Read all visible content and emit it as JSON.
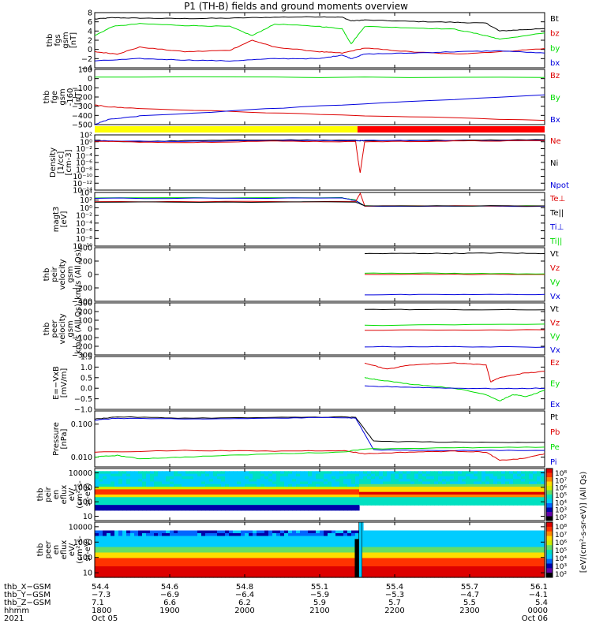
{
  "title": "P1 (TH-B) fields and ground moments overview",
  "colors": {
    "black": "#000000",
    "red": "#dd0000",
    "green": "#00dd00",
    "blue": "#0000dd",
    "yellow": "#ffff00",
    "barred": "#ff0000"
  },
  "chart_data": [
    {
      "type": "line",
      "ylabel": [
        "thb",
        "fgs",
        "gsm",
        "[nT]"
      ],
      "yticks": [
        "8",
        "6",
        "4",
        "2",
        "0",
        "−2",
        "−4"
      ],
      "ylim": [
        -4,
        8
      ],
      "legend": [
        {
          "label": "Bt",
          "color": "black"
        },
        {
          "label": "bz",
          "color": "red"
        },
        {
          "label": "by",
          "color": "green"
        },
        {
          "label": "bx",
          "color": "blue"
        }
      ],
      "series": [
        {
          "name": "Bt",
          "color": "black",
          "x": [
            0,
            0.04,
            0.1,
            0.2,
            0.3,
            0.4,
            0.5,
            0.55,
            0.57,
            0.6,
            0.7,
            0.8,
            0.87,
            0.9,
            0.95,
            1.0
          ],
          "y": [
            6.6,
            6.9,
            6.8,
            6.7,
            6.8,
            7.0,
            7.1,
            7.0,
            6.2,
            6.4,
            6.1,
            5.9,
            5.7,
            4.0,
            4.3,
            4.5
          ]
        },
        {
          "name": "bz",
          "color": "red",
          "x": [
            0,
            0.05,
            0.1,
            0.2,
            0.3,
            0.35,
            0.4,
            0.5,
            0.55,
            0.6,
            0.7,
            0.8,
            0.9,
            1.0
          ],
          "y": [
            -0.5,
            -1.0,
            0.5,
            -0.5,
            -0.2,
            2.0,
            0.5,
            -0.5,
            -0.8,
            0.3,
            -0.5,
            -1.0,
            -0.5,
            0.2
          ]
        },
        {
          "name": "by",
          "color": "green",
          "x": [
            0,
            0.04,
            0.1,
            0.2,
            0.3,
            0.35,
            0.4,
            0.5,
            0.55,
            0.57,
            0.6,
            0.7,
            0.8,
            0.87,
            0.9,
            1.0
          ],
          "y": [
            3.0,
            5.0,
            5.6,
            5.2,
            5.0,
            3.0,
            5.5,
            5.0,
            4.5,
            1.2,
            5.0,
            4.7,
            4.4,
            3.0,
            2.2,
            3.6
          ]
        },
        {
          "name": "bx",
          "color": "blue",
          "x": [
            0,
            0.1,
            0.2,
            0.3,
            0.4,
            0.5,
            0.55,
            0.57,
            0.6,
            0.7,
            0.8,
            0.9,
            1.0
          ],
          "y": [
            -2.5,
            -2.0,
            -2.3,
            -2.5,
            -2.0,
            -2.0,
            -1.2,
            -2.0,
            -1.0,
            -0.8,
            -0.5,
            -0.3,
            -0.8
          ]
        }
      ]
    },
    {
      "type": "line",
      "ylabel": [
        "thb",
        "fge",
        "gsm",
        "-160",
        "[nT]"
      ],
      "yticks": [
        "100",
        "0",
        "−100",
        "−200",
        "−300",
        "−400",
        "−500"
      ],
      "ylim": [
        -550,
        100
      ],
      "legend": [
        {
          "label": "Bz",
          "color": "red"
        },
        {
          "label": "By",
          "color": "green"
        },
        {
          "label": "Bx",
          "color": "blue"
        }
      ],
      "series": [
        {
          "name": "Bz",
          "color": "red",
          "x": [
            0,
            0.03,
            0.1,
            0.5,
            1.0
          ],
          "y": [
            -320,
            -340,
            -360,
            -430,
            -500
          ]
        },
        {
          "name": "By",
          "color": "green",
          "x": [
            0,
            1.0
          ],
          "y": [
            10,
            5
          ]
        },
        {
          "name": "Bx",
          "color": "blue",
          "x": [
            0,
            0.03,
            0.1,
            0.5,
            1.0
          ],
          "y": [
            -550,
            -490,
            -450,
            -330,
            -200
          ]
        }
      ]
    },
    {
      "type": "status-bar",
      "segments": [
        {
          "from": 0,
          "to": 0.584,
          "color": "yellow"
        },
        {
          "from": 0.584,
          "to": 1,
          "color": "barred"
        }
      ]
    },
    {
      "type": "line",
      "ylog": true,
      "ylabel": [
        "Density",
        "[1/cc]",
        "[cm-3]"
      ],
      "yticks": [
        "10²",
        "10⁰",
        "10⁻²",
        "10⁻⁴",
        "10⁻⁶",
        "10⁻⁸",
        "10⁻¹⁰",
        "10⁻¹²",
        "10⁻¹⁴"
      ],
      "ylim": [
        -14,
        2
      ],
      "legend": [
        {
          "label": "Ne",
          "color": "red"
        },
        {
          "label": "Ni",
          "color": "black"
        },
        {
          "label": "Npot",
          "color": "blue"
        }
      ],
      "series": [
        {
          "name": "Ni",
          "color": "black",
          "x": [
            0,
            0.05,
            0.2,
            0.4,
            0.58,
            0.6,
            0.8,
            1.0
          ],
          "y": [
            0.5,
            0.0,
            0.3,
            0.6,
            0.4,
            0.2,
            0.5,
            0.6
          ]
        },
        {
          "name": "Npot",
          "color": "blue",
          "x": [
            0,
            0.2,
            0.4,
            0.58,
            0.6,
            0.8,
            1.0
          ],
          "y": [
            0.3,
            0.1,
            0.4,
            0.3,
            0.4,
            0.3,
            0.4
          ]
        },
        {
          "name": "Ne",
          "color": "red",
          "x": [
            0,
            0.2,
            0.4,
            0.58,
            0.585,
            0.59,
            0.6,
            0.8,
            1.0
          ],
          "y": [
            0.1,
            -0.2,
            0.2,
            0.0,
            -5.0,
            -9.0,
            0.0,
            0.2,
            0.3
          ]
        }
      ]
    },
    {
      "type": "line",
      "ylog": true,
      "ylabel": [
        "magt3",
        "[eV]"
      ],
      "yticks": [
        "10⁴",
        "10²",
        "10⁰",
        "10⁻²",
        "10⁻⁴",
        "10⁻⁶",
        "10⁻⁸",
        "10⁻¹⁰"
      ],
      "ylim": [
        -10,
        4
      ],
      "legend": [
        {
          "label": "Te⊥",
          "color": "red"
        },
        {
          "label": "Te||",
          "color": "black"
        },
        {
          "label": "Ti⊥",
          "color": "blue"
        },
        {
          "label": "Ti||",
          "color": "green"
        }
      ],
      "series": [
        {
          "name": "Ti||",
          "color": "green",
          "x": [
            0,
            0.55,
            0.58,
            0.6,
            1.0
          ],
          "y": [
            2.6,
            2.6,
            2.0,
            0.5,
            0.5
          ]
        },
        {
          "name": "Ti⊥",
          "color": "blue",
          "x": [
            0,
            0.55,
            0.58,
            0.6,
            1.0
          ],
          "y": [
            2.5,
            2.5,
            1.9,
            0.4,
            0.4
          ]
        },
        {
          "name": "Te⊥",
          "color": "red",
          "x": [
            0,
            0.58,
            0.59,
            0.6,
            1.0
          ],
          "y": [
            1.6,
            1.6,
            3.8,
            0.5,
            0.5
          ]
        },
        {
          "name": "Te||",
          "color": "black",
          "x": [
            0,
            0.58,
            0.6,
            1.0
          ],
          "y": [
            1.5,
            1.5,
            0.5,
            0.5
          ]
        }
      ]
    },
    {
      "type": "line",
      "ylabel": [
        "thb",
        "peir",
        "velocity",
        "gsm",
        "km/s (All Qs)"
      ],
      "yticks": [
        "400",
        "200",
        "0",
        "−200",
        "−400"
      ],
      "ylim": [
        -430,
        430
      ],
      "legend": [
        {
          "label": "Vt",
          "color": "black"
        },
        {
          "label": "Vz",
          "color": "red"
        },
        {
          "label": "Vy",
          "color": "green"
        },
        {
          "label": "Vx",
          "color": "blue"
        }
      ],
      "series": [
        {
          "name": "Vt",
          "color": "black",
          "x": [
            0.6,
            0.7,
            0.8,
            0.9,
            1.0
          ],
          "y": [
            335,
            338,
            338,
            345,
            335
          ]
        },
        {
          "name": "Vz",
          "color": "red",
          "x": [
            0.6,
            1.0
          ],
          "y": [
            5,
            0
          ]
        },
        {
          "name": "Vy",
          "color": "green",
          "x": [
            0.6,
            0.8,
            1.0
          ],
          "y": [
            25,
            18,
            10
          ]
        },
        {
          "name": "Vx",
          "color": "blue",
          "x": [
            0.6,
            0.8,
            1.0
          ],
          "y": [
            -325,
            -322,
            -320
          ]
        }
      ]
    },
    {
      "type": "line",
      "ylabel": [
        "thb",
        "peer",
        "velocity",
        "gsm",
        "km/s (All Qs)"
      ],
      "yticks": [
        "300",
        "200",
        "100",
        "0",
        "−100",
        "−200",
        "−300"
      ],
      "ylim": [
        -300,
        300
      ],
      "legend": [
        {
          "label": "Vt",
          "color": "black"
        },
        {
          "label": "Vz",
          "color": "red"
        },
        {
          "label": "Vy",
          "color": "green"
        },
        {
          "label": "Vx",
          "color": "blue"
        }
      ],
      "series": [
        {
          "name": "Vt",
          "color": "black",
          "x": [
            0.6,
            0.8,
            1.0
          ],
          "y": [
            225,
            222,
            220
          ]
        },
        {
          "name": "Vz",
          "color": "red",
          "x": [
            0.6,
            1.0
          ],
          "y": [
            -15,
            -10
          ]
        },
        {
          "name": "Vy",
          "color": "green",
          "x": [
            0.6,
            1.0
          ],
          "y": [
            40,
            55
          ]
        },
        {
          "name": "Vx",
          "color": "blue",
          "x": [
            0.6,
            0.8,
            1.0
          ],
          "y": [
            -205,
            -205,
            -210
          ]
        }
      ]
    },
    {
      "type": "line",
      "ylabel": [
        "E=−VxB",
        "[mV/m]"
      ],
      "yticks": [
        "1.5",
        "1.0",
        "0.5",
        "0.0",
        "−0.5",
        "−1.0"
      ],
      "ylim": [
        -1.0,
        1.5
      ],
      "legend": [
        {
          "label": "Ez",
          "color": "red"
        },
        {
          "label": "Ey",
          "color": "green"
        },
        {
          "label": "Ex",
          "color": "blue"
        }
      ],
      "series": [
        {
          "name": "Ez",
          "color": "red",
          "x": [
            0.6,
            0.65,
            0.7,
            0.8,
            0.87,
            0.88,
            0.9,
            0.95,
            1.0
          ],
          "y": [
            1.2,
            0.9,
            1.1,
            1.2,
            1.1,
            0.3,
            0.5,
            0.7,
            0.8
          ]
        },
        {
          "name": "Ey",
          "color": "green",
          "x": [
            0.6,
            0.63,
            0.7,
            0.8,
            0.87,
            0.9,
            0.93,
            0.96,
            1.0
          ],
          "y": [
            0.5,
            0.4,
            0.2,
            0.0,
            -0.3,
            -0.6,
            -0.3,
            -0.4,
            -0.1
          ]
        },
        {
          "name": "Ex",
          "color": "blue",
          "x": [
            0.6,
            0.7,
            0.8,
            0.9,
            1.0
          ],
          "y": [
            0.1,
            0.05,
            0.0,
            -0.02,
            0.0
          ]
        }
      ]
    },
    {
      "type": "line",
      "ylog": true,
      "ylabel": [
        "Pressure",
        "[nPa]"
      ],
      "yticks": [
        "0.100",
        "0.010"
      ],
      "ytickvals": [
        -1,
        -2
      ],
      "ylim": [
        -2.3,
        -0.6
      ],
      "legend": [
        {
          "label": "Pt",
          "color": "black"
        },
        {
          "label": "Pb",
          "color": "red"
        },
        {
          "label": "Pe",
          "color": "green"
        },
        {
          "label": "Pi",
          "color": "blue"
        }
      ],
      "series": [
        {
          "name": "Pt",
          "color": "black",
          "x": [
            0,
            0.05,
            0.2,
            0.4,
            0.55,
            0.58,
            0.62,
            0.8,
            1.0
          ],
          "y": [
            -0.85,
            -0.78,
            -0.82,
            -0.8,
            -0.78,
            -0.8,
            -1.52,
            -1.55,
            -1.55
          ]
        },
        {
          "name": "Pi",
          "color": "blue",
          "x": [
            0,
            0.05,
            0.2,
            0.4,
            0.55,
            0.58,
            0.62,
            0.8,
            1.0
          ],
          "y": [
            -0.88,
            -0.82,
            -0.85,
            -0.82,
            -0.8,
            -0.82,
            -1.78,
            -1.8,
            -1.8
          ]
        },
        {
          "name": "Pb",
          "color": "red",
          "x": [
            0,
            0.2,
            0.4,
            0.55,
            0.6,
            0.7,
            0.8,
            0.87,
            0.9,
            0.95,
            1.0
          ],
          "y": [
            -1.85,
            -1.8,
            -1.82,
            -1.8,
            -1.9,
            -1.85,
            -1.82,
            -1.85,
            -2.1,
            -2.05,
            -1.9
          ]
        },
        {
          "name": "Pe",
          "color": "green",
          "x": [
            0,
            0.05,
            0.1,
            0.2,
            0.4,
            0.55,
            0.6,
            0.8,
            1.0
          ],
          "y": [
            -2.0,
            -1.95,
            -2.05,
            -2.0,
            -1.9,
            -1.85,
            -1.75,
            -1.72,
            -1.7
          ]
        }
      ]
    },
    {
      "type": "heatmap",
      "ylog": true,
      "ylabel": [
        "thb",
        "peir",
        "en",
        "eflux",
        "eV/",
        "(cm²-s-",
        "sr-eV)"
      ],
      "yticks": [
        "10000",
        "1000",
        "100",
        "10"
      ],
      "ytickvals": [
        4,
        3,
        2,
        1
      ],
      "ylim": [
        0.7,
        4.3
      ]
    },
    {
      "type": "heatmap",
      "ylog": true,
      "ylabel": [
        "thb",
        "peer",
        "en",
        "eflux",
        "eV/",
        "(cm²-s-",
        "sr-eV)"
      ],
      "yticks": [
        "10000",
        "1000",
        "100",
        "10"
      ],
      "ytickvals": [
        4,
        3,
        2,
        1
      ],
      "ylim": [
        0.7,
        4.3
      ]
    }
  ],
  "colorbar": {
    "label": "[eV/(cm²-s-sr-eV)] (All Qs)",
    "ticks": [
      "10⁸",
      "10⁷",
      "10⁶",
      "10⁵",
      "10⁴",
      "10³",
      "10²"
    ],
    "ticks2": [
      "10⁸",
      "10⁷",
      "10⁶",
      "10⁵",
      "10⁴",
      "10³",
      "10²"
    ]
  },
  "xaxis": {
    "row_labels": [
      "thb_X−GSM",
      "thb_Y−GSM",
      "thb_Z−GSM",
      "hhmm",
      "2021"
    ],
    "ticks": [
      {
        "pos": 0,
        "vals": [
          "54.4",
          "−7.3",
          "7.1",
          "1800",
          "Oct 05"
        ]
      },
      {
        "pos": 0.1667,
        "vals": [
          "54.6",
          "−6.9",
          "6.6",
          "1900",
          ""
        ]
      },
      {
        "pos": 0.3333,
        "vals": [
          "54.8",
          "−6.4",
          "6.2",
          "2000",
          ""
        ]
      },
      {
        "pos": 0.5,
        "vals": [
          "55.1",
          "−5.9",
          "5.9",
          "2100",
          ""
        ]
      },
      {
        "pos": 0.6667,
        "vals": [
          "55.4",
          "−5.3",
          "5.7",
          "2200",
          ""
        ]
      },
      {
        "pos": 0.8333,
        "vals": [
          "55.7",
          "−4.7",
          "5.5",
          "2300",
          ""
        ]
      },
      {
        "pos": 1,
        "vals": [
          "56.1",
          "−4.1",
          "5.4",
          "0000",
          "Oct 06"
        ]
      }
    ]
  }
}
